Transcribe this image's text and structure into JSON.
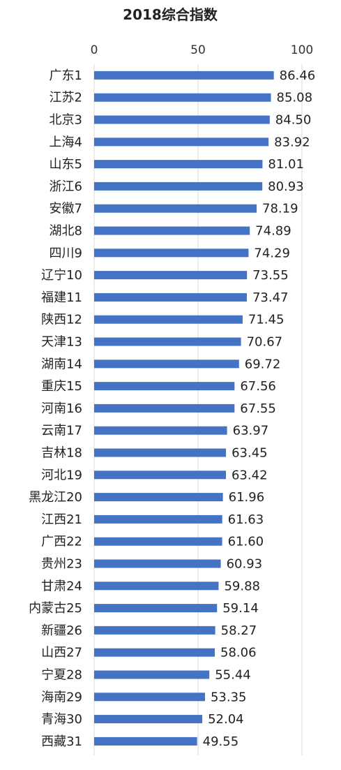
{
  "chart_data": {
    "type": "bar",
    "orientation": "horizontal",
    "title": "2018综合指数",
    "xlabel": "",
    "ylabel": "",
    "xlim": [
      0,
      100
    ],
    "ticks": [
      "0",
      "50",
      "100"
    ],
    "grid": "vertical",
    "bar_color": "#4472C4",
    "categories": [
      "广东1",
      "江苏2",
      "北京3",
      "上海4",
      "山东5",
      "浙江6",
      "安徽7",
      "湖北8",
      "四川9",
      "辽宁10",
      "福建11",
      "陕西12",
      "天津13",
      "湖南14",
      "重庆15",
      "河南16",
      "云南17",
      "吉林18",
      "河北19",
      "黑龙江20",
      "江西21",
      "广西22",
      "贵州23",
      "甘肃24",
      "内蒙古25",
      "新疆26",
      "山西27",
      "宁夏28",
      "海南29",
      "青海30",
      "西藏31"
    ],
    "value_labels": [
      "86.46",
      "85.08",
      "84.50",
      "83.92",
      "81.01",
      "80.93",
      "78.19",
      "74.89",
      "74.29",
      "73.55",
      "73.47",
      "71.45",
      "70.67",
      "69.72",
      "67.56",
      "67.55",
      "63.97",
      "63.45",
      "63.42",
      "61.96",
      "61.63",
      "61.60",
      "60.93",
      "59.88",
      "59.14",
      "58.27",
      "58.06",
      "55.44",
      "53.35",
      "52.04",
      "49.55"
    ],
    "values": [
      86.46,
      85.08,
      84.5,
      83.92,
      81.01,
      80.93,
      78.19,
      74.89,
      74.29,
      73.55,
      73.47,
      71.45,
      70.67,
      69.72,
      67.56,
      67.55,
      63.97,
      63.45,
      63.42,
      61.96,
      61.63,
      61.6,
      60.93,
      59.88,
      59.14,
      58.27,
      58.06,
      55.44,
      53.35,
      52.04,
      49.55
    ]
  }
}
